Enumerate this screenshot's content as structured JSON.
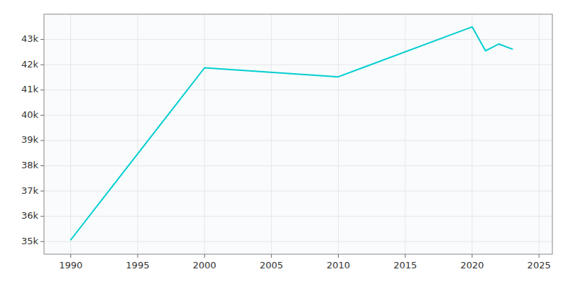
{
  "chart_data": {
    "type": "line",
    "x": [
      1990,
      2000,
      2010,
      2020,
      2021,
      2022,
      2023
    ],
    "values": [
      35069,
      41878,
      41523,
      43498,
      42550,
      42820,
      42620
    ],
    "color": "#00CED1",
    "xlim": [
      1988,
      2026
    ],
    "xticks": [
      1990,
      1995,
      2000,
      2005,
      2010,
      2015,
      2020,
      2025
    ],
    "ylim": [
      34500,
      44000
    ],
    "yticks": [
      {
        "value": 35000,
        "label": "35k"
      },
      {
        "value": 36000,
        "label": "36k"
      },
      {
        "value": 37000,
        "label": "37k"
      },
      {
        "value": 38000,
        "label": "38k"
      },
      {
        "value": 39000,
        "label": "39k"
      },
      {
        "value": 40000,
        "label": "40k"
      },
      {
        "value": 41000,
        "label": "41k"
      },
      {
        "value": 42000,
        "label": "42k"
      },
      {
        "value": 43000,
        "label": "43k"
      }
    ],
    "grid": true
  }
}
